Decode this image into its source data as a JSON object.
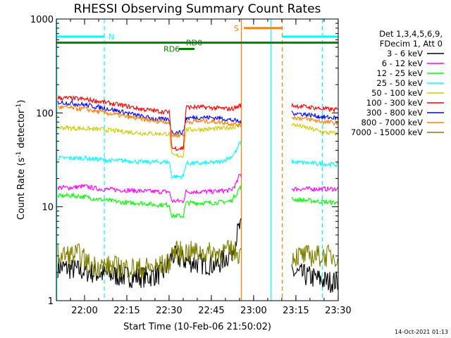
{
  "chart_data": {
    "type": "line",
    "title": "RHESSI Observing Summary Count Rates",
    "xlabel": "Start Time (10-Feb-06 21:50:02)",
    "ylabel": "Count Rate (s",
    "ylabel_exp1": "-1",
    "ylabel_mid": " detector",
    "ylabel_exp2": "-1",
    "ylabel_end": ")",
    "x_unit": "minutes since 21:50:02",
    "xlim": [
      -0.03,
      100
    ],
    "ylim": [
      1,
      1000
    ],
    "yscale": "log",
    "x_ticks": [
      {
        "label": "22:00",
        "value": 9.97
      },
      {
        "label": "22:15",
        "value": 24.97
      },
      {
        "label": "22:30",
        "value": 39.97
      },
      {
        "label": "22:45",
        "value": 54.97
      },
      {
        "label": "23:00",
        "value": 69.97
      },
      {
        "label": "23:15",
        "value": 84.97
      },
      {
        "label": "23:30",
        "value": 99.97
      }
    ],
    "y_ticks": [
      {
        "label": "1",
        "value": 1
      },
      {
        "label": "10",
        "value": 10
      },
      {
        "label": "100",
        "value": 100
      },
      {
        "label": "1000",
        "value": 1000
      }
    ],
    "legend": {
      "header1": "Det 1,3,4,5,6,9,",
      "header2": "FDecim 1, Att 0",
      "position": "right"
    },
    "gaps": [
      [
        65.5,
        83.5
      ]
    ],
    "series": [
      {
        "name": "3 - 6 keV",
        "color": "#000000",
        "points": [
          [
            0.5,
            2.3
          ],
          [
            8,
            2.1
          ],
          [
            17,
            1.9
          ],
          [
            26,
            1.8
          ],
          [
            33,
            1.8
          ],
          [
            38,
            2.0
          ],
          [
            41,
            3.0
          ],
          [
            45,
            2.7
          ],
          [
            50,
            2.5
          ],
          [
            57,
            2.4
          ],
          [
            62,
            3.2
          ],
          [
            64,
            5.0
          ],
          [
            65,
            6.0
          ],
          [
            84,
            2.0
          ],
          [
            90,
            1.8
          ],
          [
            96,
            1.6
          ],
          [
            100,
            1.6
          ]
        ]
      },
      {
        "name": "6 - 12 keV",
        "color": "#ff00ff",
        "points": [
          [
            0.5,
            16
          ],
          [
            5,
            16
          ],
          [
            10,
            16.5
          ],
          [
            15,
            15.5
          ],
          [
            25,
            15
          ],
          [
            35,
            14.5
          ],
          [
            40,
            14.5
          ],
          [
            41,
            11.5
          ],
          [
            45,
            11.5
          ],
          [
            46,
            14.5
          ],
          [
            55,
            14.5
          ],
          [
            62,
            15
          ],
          [
            64,
            18
          ],
          [
            65,
            22
          ],
          [
            84,
            15.5
          ],
          [
            92,
            15.5
          ],
          [
            100,
            15.5
          ]
        ]
      },
      {
        "name": "12 - 25 keV",
        "color": "#00ff00",
        "points": [
          [
            0.5,
            13
          ],
          [
            5,
            13.2
          ],
          [
            10,
            12.8
          ],
          [
            15,
            12
          ],
          [
            20,
            11.5
          ],
          [
            25,
            11
          ],
          [
            30,
            11
          ],
          [
            35,
            10.5
          ],
          [
            40,
            10.5
          ],
          [
            41,
            8.0
          ],
          [
            45,
            8.0
          ],
          [
            46,
            11
          ],
          [
            55,
            11
          ],
          [
            62,
            11.5
          ],
          [
            64,
            14
          ],
          [
            65,
            16
          ],
          [
            84,
            12
          ],
          [
            92,
            11.5
          ],
          [
            100,
            11
          ]
        ]
      },
      {
        "name": "25 - 50 keV",
        "color": "#00ffff",
        "points": [
          [
            0.5,
            33
          ],
          [
            5,
            33
          ],
          [
            10,
            33
          ],
          [
            15,
            32
          ],
          [
            20,
            31
          ],
          [
            25,
            31
          ],
          [
            30,
            30
          ],
          [
            35,
            30
          ],
          [
            40,
            30
          ],
          [
            41,
            21
          ],
          [
            45,
            21
          ],
          [
            46,
            29
          ],
          [
            52,
            29
          ],
          [
            58,
            30
          ],
          [
            62,
            34
          ],
          [
            64,
            40
          ],
          [
            65,
            48
          ],
          [
            84,
            30
          ],
          [
            92,
            29
          ],
          [
            100,
            28
          ]
        ]
      },
      {
        "name": "50 - 100 keV",
        "color": "#cccc00",
        "points": [
          [
            0.5,
            70
          ],
          [
            5,
            69
          ],
          [
            10,
            68
          ],
          [
            15,
            67
          ],
          [
            20,
            65
          ],
          [
            25,
            63
          ],
          [
            30,
            61
          ],
          [
            35,
            60
          ],
          [
            40,
            60
          ],
          [
            41,
            35
          ],
          [
            45,
            35
          ],
          [
            46,
            66
          ],
          [
            52,
            67
          ],
          [
            58,
            68
          ],
          [
            62,
            70
          ],
          [
            64,
            72
          ],
          [
            65,
            75
          ],
          [
            84,
            75
          ],
          [
            90,
            68
          ],
          [
            95,
            62
          ],
          [
            100,
            60
          ]
        ]
      },
      {
        "name": "100 - 300 keV",
        "color": "#ff0000",
        "points": [
          [
            0.5,
            145
          ],
          [
            5,
            143
          ],
          [
            10,
            140
          ],
          [
            15,
            133
          ],
          [
            20,
            125
          ],
          [
            25,
            118
          ],
          [
            30,
            110
          ],
          [
            35,
            105
          ],
          [
            40,
            102
          ],
          [
            41,
            42
          ],
          [
            45,
            42
          ],
          [
            46,
            115
          ],
          [
            52,
            115
          ],
          [
            58,
            112
          ],
          [
            62,
            110
          ],
          [
            64,
            115
          ],
          [
            65,
            120
          ],
          [
            84,
            120
          ],
          [
            90,
            115
          ],
          [
            95,
            110
          ],
          [
            100,
            108
          ]
        ]
      },
      {
        "name": "300 - 800 keV",
        "color": "#0000ff",
        "points": [
          [
            0.5,
            130
          ],
          [
            5,
            127
          ],
          [
            10,
            122
          ],
          [
            15,
            115
          ],
          [
            20,
            108
          ],
          [
            25,
            100
          ],
          [
            30,
            92
          ],
          [
            35,
            86
          ],
          [
            40,
            85
          ],
          [
            41,
            62
          ],
          [
            45,
            62
          ],
          [
            46,
            88
          ],
          [
            52,
            90
          ],
          [
            58,
            88
          ],
          [
            62,
            84
          ],
          [
            64,
            82
          ],
          [
            65,
            80
          ],
          [
            84,
            100
          ],
          [
            90,
            95
          ],
          [
            95,
            90
          ],
          [
            100,
            88
          ]
        ]
      },
      {
        "name": "800 - 7000 keV",
        "color": "#ff8000",
        "points": [
          [
            0.5,
            115
          ],
          [
            5,
            113
          ],
          [
            10,
            110
          ],
          [
            15,
            103
          ],
          [
            20,
            97
          ],
          [
            25,
            91
          ],
          [
            30,
            86
          ],
          [
            35,
            82
          ],
          [
            40,
            80
          ],
          [
            41,
            58
          ],
          [
            45,
            58
          ],
          [
            46,
            80
          ],
          [
            52,
            82
          ],
          [
            58,
            80
          ],
          [
            62,
            77
          ],
          [
            64,
            75
          ],
          [
            65,
            73
          ],
          [
            84,
            90
          ],
          [
            90,
            85
          ],
          [
            95,
            80
          ],
          [
            100,
            78
          ]
        ]
      },
      {
        "name": "7000 - 15000 keV",
        "color": "#808000",
        "points": [
          [
            0.5,
            3.0
          ],
          [
            8,
            3.1
          ],
          [
            12,
            2.4
          ],
          [
            20,
            2.3
          ],
          [
            30,
            2.2
          ],
          [
            36,
            2.3
          ],
          [
            40,
            2.5
          ],
          [
            41,
            3.3
          ],
          [
            48,
            3.3
          ],
          [
            55,
            3.2
          ],
          [
            62,
            3.4
          ],
          [
            65,
            3.2
          ],
          [
            84,
            3.0
          ],
          [
            92,
            3.0
          ],
          [
            100,
            3.0
          ]
        ]
      }
    ],
    "vertical_lines": [
      {
        "x": 0.1,
        "color": "#00ffff",
        "dash": "solid"
      },
      {
        "x": 17.0,
        "color": "#00ffff",
        "dash": "dashed"
      },
      {
        "x": 65.6,
        "color": "#ff8000",
        "dash": "solid"
      },
      {
        "x": 76.1,
        "color": "#00ffff",
        "dash": "solid"
      },
      {
        "x": 80.1,
        "color": "#ff8000",
        "dash": "dashed"
      },
      {
        "x": 94.4,
        "color": "#00ffff",
        "dash": "dashed"
      }
    ],
    "annotations": [
      {
        "label": "N",
        "color": "#00ffff",
        "x_from": 0.1,
        "x_to": 17.0,
        "y": 650,
        "text_x": 18.5
      },
      {
        "label": "N",
        "color": "#00ffff",
        "x_from": 80.1,
        "x_to": 100.0,
        "y": 650,
        "text_x": null
      },
      {
        "label": "S",
        "color": "#ff8000",
        "x_from": 66.5,
        "x_to": 80.1,
        "y": 800,
        "text_x": 63.0
      },
      {
        "label": "RD0",
        "color": "#008000",
        "x_from": 0.1,
        "x_to": 100.0,
        "y": 560,
        "text_x": 46.0
      },
      {
        "label": "RD6",
        "color": "#008000",
        "x_from": 43.5,
        "x_to": 49.0,
        "y": 480,
        "text_x": 38.0
      }
    ]
  },
  "timestamp": "14-Oct-2021 01:13"
}
